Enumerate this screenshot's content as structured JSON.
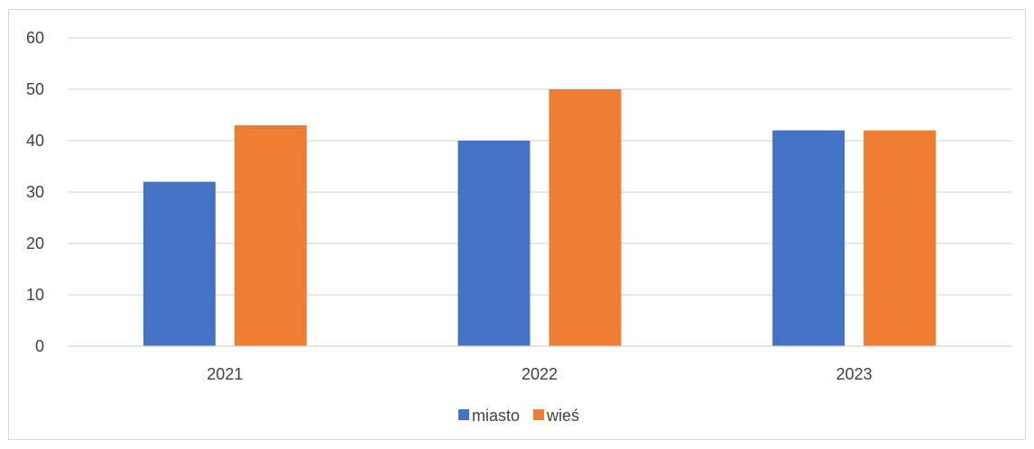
{
  "chart_data": {
    "type": "bar",
    "categories": [
      "2021",
      "2022",
      "2023"
    ],
    "series": [
      {
        "name": "miasto",
        "values": [
          32,
          40,
          42
        ],
        "color": "#4472c4"
      },
      {
        "name": "wieś",
        "values": [
          43,
          50,
          42
        ],
        "color": "#ed7d31"
      }
    ],
    "title": "",
    "xlabel": "",
    "ylabel": "",
    "ylim": [
      0,
      60
    ],
    "yticks": [
      "0",
      "10",
      "20",
      "30",
      "40",
      "50",
      "60"
    ],
    "grid": true,
    "legend_position": "bottom"
  }
}
